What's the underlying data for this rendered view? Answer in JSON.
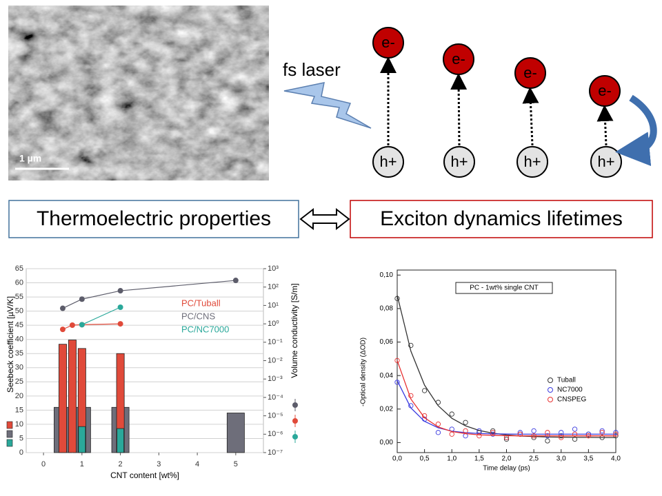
{
  "sem_image": {
    "scale_label": "1 µm"
  },
  "excitation": {
    "label": "fs laser",
    "electrons": [
      "e-",
      "e-",
      "e-",
      "e-"
    ],
    "holes": [
      "h+",
      "h+",
      "h+",
      "h+"
    ]
  },
  "links": {
    "left": "Thermoelectric properties",
    "right": "Exciton dynamics lifetimes"
  },
  "chart_data": [
    {
      "type": "bar",
      "xlabel": "CNT content [wt%]",
      "ylabel": "Seebeck coefficient [µV/K]",
      "y2label": "Volume conductivity [S/m]",
      "xlim": [
        -0.45,
        5.72
      ],
      "xticks": [
        0,
        1,
        2,
        3,
        4,
        5
      ],
      "ylim": [
        0,
        65
      ],
      "yticks": [
        0,
        5,
        10,
        15,
        20,
        25,
        30,
        35,
        40,
        45,
        50,
        55,
        60,
        65
      ],
      "y2lim": [
        1e-07,
        1000
      ],
      "y2scale": "log",
      "y2ticks": [
        {
          "value": 1e-07,
          "label": "10⁻⁷"
        },
        {
          "value": 1e-06,
          "label": "10⁻⁶"
        },
        {
          "value": 1e-05,
          "label": "10⁻⁵"
        },
        {
          "value": 0.0001,
          "label": "10⁻⁴"
        },
        {
          "value": 0.001,
          "label": "10⁻³"
        },
        {
          "value": 0.01,
          "label": "10⁻²"
        },
        {
          "value": 0.1,
          "label": "10⁻¹"
        },
        {
          "value": 1,
          "label": "10⁰"
        },
        {
          "value": 10,
          "label": "10¹"
        },
        {
          "value": 100,
          "label": "10²"
        },
        {
          "value": 1000,
          "label": "10³"
        }
      ],
      "grid": true,
      "series": [
        {
          "name": "PC/Tuball",
          "color": "#e04a3a",
          "x": [
            0.5,
            0.75,
            1,
            2
          ],
          "values": [
            38.3,
            39.8,
            36.8,
            35.0
          ]
        },
        {
          "name": "PC/CNS",
          "color": "#6e6e7a",
          "x": [
            0.5,
            1,
            2,
            5
          ],
          "values": [
            16,
            16,
            16,
            14
          ]
        },
        {
          "name": "PC/NC7000",
          "color": "#2aa89a",
          "x": [
            1,
            2
          ],
          "values": [
            9.2,
            8.5
          ]
        }
      ],
      "conductivity": [
        {
          "axis": "y2",
          "color": "#e04a3a",
          "x": [
            0.5,
            0.75,
            1,
            2
          ],
          "values": [
            0.5,
            0.85,
            0.9,
            1.0
          ]
        },
        {
          "axis": "y2",
          "color": "#5c5c6a",
          "x": [
            0.5,
            1,
            2,
            5
          ],
          "values": [
            7,
            22,
            63,
            230
          ]
        },
        {
          "axis": "y2",
          "color": "#2aa89a",
          "x": [
            1,
            2
          ],
          "values": [
            0.9,
            8
          ]
        }
      ]
    },
    {
      "type": "scatter",
      "title": "PC - 1wt% single CNT",
      "xlabel": "Time delay (ps)",
      "ylabel": "-Optical density (ΔOD)",
      "xlim": [
        0,
        4
      ],
      "xticks": [
        {
          "value": 0,
          "label": "0,0"
        },
        {
          "value": 0.5,
          "label": "0,5"
        },
        {
          "value": 1,
          "label": "1,0"
        },
        {
          "value": 1.5,
          "label": "1,5"
        },
        {
          "value": 2,
          "label": "2,0"
        },
        {
          "value": 2.5,
          "label": "2,5"
        },
        {
          "value": 3,
          "label": "3,0"
        },
        {
          "value": 3.5,
          "label": "3,5"
        },
        {
          "value": 4,
          "label": "4,0"
        }
      ],
      "ylim": [
        -0.006,
        0.103
      ],
      "yticks": [
        {
          "value": 0,
          "label": "0,00"
        },
        {
          "value": 0.02,
          "label": "0,02"
        },
        {
          "value": 0.04,
          "label": "0,04"
        },
        {
          "value": 0.06,
          "label": "0,06"
        },
        {
          "value": 0.08,
          "label": "0,08"
        },
        {
          "value": 0.1,
          "label": "0,10"
        }
      ],
      "x": [
        0,
        0.25,
        0.5,
        0.75,
        1,
        1.25,
        1.5,
        1.75,
        2,
        2.25,
        2.5,
        2.75,
        3,
        3.25,
        3.5,
        3.75,
        4
      ],
      "series": [
        {
          "name": "Tuball",
          "color": "#333333",
          "values": [
            0.086,
            0.058,
            0.031,
            0.024,
            0.017,
            0.012,
            0.006,
            0.007,
            0.002,
            0.005,
            0.003,
            0.001,
            0.004,
            0.002,
            0.005,
            0.003,
            0.004
          ],
          "fit": [
            0.088,
            0.0546,
            0.0343,
            0.022,
            0.0145,
            0.01,
            0.0072,
            0.0056,
            0.0046,
            0.0039,
            0.0036,
            0.0033,
            0.0032,
            0.0031,
            0.0031,
            0.003,
            0.003
          ]
        },
        {
          "name": "NC7000",
          "color": "#3a3ae0",
          "values": [
            0.036,
            0.022,
            0.014,
            0.006,
            0.008,
            0.004,
            0.007,
            0.005,
            0.003,
            0.006,
            0.007,
            0.004,
            0.006,
            0.008,
            0.005,
            0.007,
            0.006
          ],
          "fit": [
            0.037,
            0.0207,
            0.0127,
            0.0088,
            0.0068,
            0.0059,
            0.0054,
            0.0052,
            0.0051,
            0.005,
            0.005,
            0.005,
            0.005,
            0.005,
            0.005,
            0.005,
            0.005
          ]
        },
        {
          "name": "CNSPEG",
          "color": "#e83030",
          "values": [
            0.049,
            0.028,
            0.016,
            0.011,
            0.005,
            0.007,
            0.004,
            0.006,
            0.003,
            0.005,
            0.004,
            0.006,
            0.003,
            0.005,
            0.004,
            0.006,
            0.005
          ],
          "fit": [
            0.049,
            0.026,
            0.0148,
            0.0093,
            0.0066,
            0.0053,
            0.0046,
            0.0043,
            0.0041,
            0.004,
            0.004,
            0.004,
            0.004,
            0.004,
            0.004,
            0.004,
            0.004
          ]
        }
      ]
    }
  ]
}
